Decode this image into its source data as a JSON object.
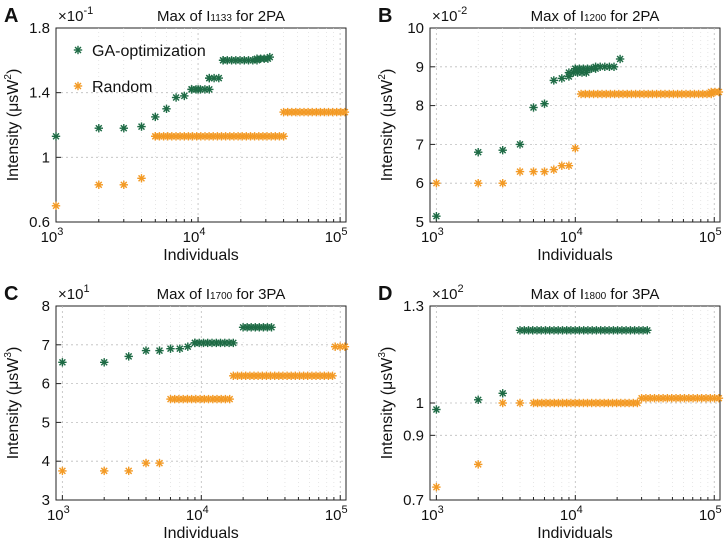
{
  "colors": {
    "ga": "#1e6b45",
    "random": "#f39a25",
    "axis": "#222222",
    "grid": "#bdbdbd"
  },
  "legend": {
    "ga_label": "GA-optimization",
    "random_label": "Random",
    "placement": "top-left (panel A)"
  },
  "chart_data": [
    {
      "type": "scatter",
      "letter": "A",
      "title_prefix": "Max of ",
      "title_symbol": "I",
      "title_subscript": "1133",
      "title_suffix": " for 2PA",
      "xlabel": "Individuals",
      "ylabel_main": "Intensity (μsW",
      "ylabel_sup": "2",
      "ylabel_close": ")",
      "y_exponent_base": "×10",
      "y_exponent_power": "-1",
      "xscale": "log",
      "xlim": [
        1000,
        110000
      ],
      "ylim": [
        0.6,
        1.8
      ],
      "yticks": [
        0.6,
        1,
        1.4,
        1.8
      ],
      "ytick_labels": [
        "0.6",
        "1",
        "1.4",
        "1.8"
      ],
      "series": [
        {
          "name": "GA-optimization",
          "points": [
            [
              1000,
              1.13
            ],
            [
              2000,
              1.18
            ],
            [
              3000,
              1.18
            ],
            [
              4000,
              1.19
            ],
            [
              5000,
              1.25
            ],
            [
              6000,
              1.3
            ],
            [
              7000,
              1.37
            ],
            [
              8000,
              1.38
            ],
            [
              9000,
              1.42
            ],
            [
              10000,
              1.42
            ],
            [
              12000,
              1.49
            ],
            [
              15000,
              1.6
            ],
            [
              32000,
              1.62
            ]
          ],
          "flats": [
            [
              9000,
              12000,
              1.42
            ],
            [
              12000,
              14000,
              1.49
            ],
            [
              15000,
              26000,
              1.6
            ],
            [
              26000,
              31000,
              1.61
            ]
          ]
        },
        {
          "name": "Random",
          "points": [
            [
              1000,
              0.7
            ],
            [
              2000,
              0.83
            ],
            [
              3000,
              0.83
            ],
            [
              4000,
              0.87
            ],
            [
              5000,
              1.13
            ]
          ],
          "flats": [
            [
              5000,
              40000,
              1.13
            ],
            [
              40000,
              108000,
              1.28
            ]
          ]
        }
      ]
    },
    {
      "type": "scatter",
      "letter": "B",
      "title_prefix": "Max of ",
      "title_symbol": "I",
      "title_subscript": "1200",
      "title_suffix": " for 2PA",
      "xlabel": "Individuals",
      "ylabel_main": "Intensity (μsW",
      "ylabel_sup": "2",
      "ylabel_close": ")",
      "y_exponent_base": "×10",
      "y_exponent_power": "-2",
      "xscale": "log",
      "xlim": [
        900,
        110000
      ],
      "ylim": [
        5,
        10
      ],
      "yticks": [
        5,
        6,
        7,
        8,
        9,
        10
      ],
      "ytick_labels": [
        "5",
        "6",
        "7",
        "8",
        "9",
        "10"
      ],
      "series": [
        {
          "name": "GA-optimization",
          "points": [
            [
              1000,
              5.15
            ],
            [
              2000,
              6.8
            ],
            [
              3000,
              6.85
            ],
            [
              4000,
              7.0
            ],
            [
              5000,
              7.95
            ],
            [
              6000,
              8.05
            ],
            [
              7000,
              8.65
            ],
            [
              8000,
              8.7
            ],
            [
              9000,
              8.75
            ],
            [
              10000,
              8.95
            ],
            [
              21000,
              9.2
            ]
          ],
          "flats": [
            [
              9000,
              12000,
              8.85
            ],
            [
              10000,
              14000,
              8.95
            ],
            [
              14000,
              19000,
              9.0
            ]
          ]
        },
        {
          "name": "Random",
          "points": [
            [
              1000,
              6.0
            ],
            [
              2000,
              6.0
            ],
            [
              3000,
              6.0
            ],
            [
              4000,
              6.3
            ],
            [
              5000,
              6.3
            ],
            [
              6000,
              6.3
            ],
            [
              7000,
              6.35
            ],
            [
              8000,
              6.45
            ],
            [
              9000,
              6.45
            ],
            [
              10000,
              6.9
            ]
          ],
          "flats": [
            [
              11000,
              95000,
              8.3
            ],
            [
              95000,
              108000,
              8.35
            ]
          ]
        }
      ]
    },
    {
      "type": "scatter",
      "letter": "C",
      "title_prefix": "Max of ",
      "title_symbol": "I",
      "title_subscript": "1700",
      "title_suffix": " for 3PA",
      "xlabel": "Individuals",
      "ylabel_main": "Intensity (μsW",
      "ylabel_sup": "3",
      "ylabel_close": ")",
      "y_exponent_base": "×10",
      "y_exponent_power": "1",
      "xscale": "log",
      "xlim": [
        900,
        110000
      ],
      "ylim": [
        3,
        8
      ],
      "yticks": [
        3,
        4,
        5,
        6,
        7,
        8
      ],
      "ytick_labels": [
        "3",
        "4",
        "5",
        "6",
        "7",
        "8"
      ],
      "series": [
        {
          "name": "GA-optimization",
          "points": [
            [
              1000,
              6.55
            ],
            [
              2000,
              6.55
            ],
            [
              3000,
              6.7
            ],
            [
              4000,
              6.85
            ],
            [
              5000,
              6.85
            ],
            [
              6000,
              6.9
            ],
            [
              7000,
              6.9
            ],
            [
              8000,
              6.95
            ],
            [
              9000,
              7.05
            ]
          ],
          "flats": [
            [
              9000,
              17000,
              7.05
            ],
            [
              20000,
              32000,
              7.45
            ]
          ]
        },
        {
          "name": "Random",
          "points": [
            [
              1000,
              3.75
            ],
            [
              2000,
              3.75
            ],
            [
              3000,
              3.75
            ],
            [
              4000,
              3.95
            ],
            [
              5000,
              3.95
            ]
          ],
          "flats": [
            [
              6000,
              16000,
              5.6
            ],
            [
              17000,
              88000,
              6.2
            ],
            [
              92000,
              108000,
              6.95
            ]
          ]
        }
      ]
    },
    {
      "type": "scatter",
      "letter": "D",
      "title_prefix": "Max of ",
      "title_symbol": "I",
      "title_subscript": "1800",
      "title_suffix": " for 3PA",
      "xlabel": "Individuals",
      "ylabel_main": "Intensity (μsW",
      "ylabel_sup": "3",
      "ylabel_close": ")",
      "y_exponent_base": "×10",
      "y_exponent_power": "2",
      "xscale": "log",
      "xlim": [
        900,
        110000
      ],
      "ylim": [
        0.7,
        1.3
      ],
      "yticks": [
        0.7,
        0.9,
        1,
        1.3
      ],
      "ytick_labels": [
        "0.7",
        "0.9",
        "1",
        "1.3"
      ],
      "series": [
        {
          "name": "GA-optimization",
          "points": [
            [
              1000,
              0.98
            ],
            [
              2000,
              1.01
            ],
            [
              3000,
              1.03
            ]
          ],
          "flats": [
            [
              4000,
              33000,
              1.225
            ]
          ]
        },
        {
          "name": "Random",
          "points": [
            [
              1000,
              0.74
            ],
            [
              2000,
              0.81
            ],
            [
              3000,
              1.0
            ],
            [
              4000,
              1.0
            ]
          ],
          "flats": [
            [
              5000,
              28000,
              1.0
            ],
            [
              30000,
              108000,
              1.015
            ]
          ]
        }
      ]
    }
  ]
}
